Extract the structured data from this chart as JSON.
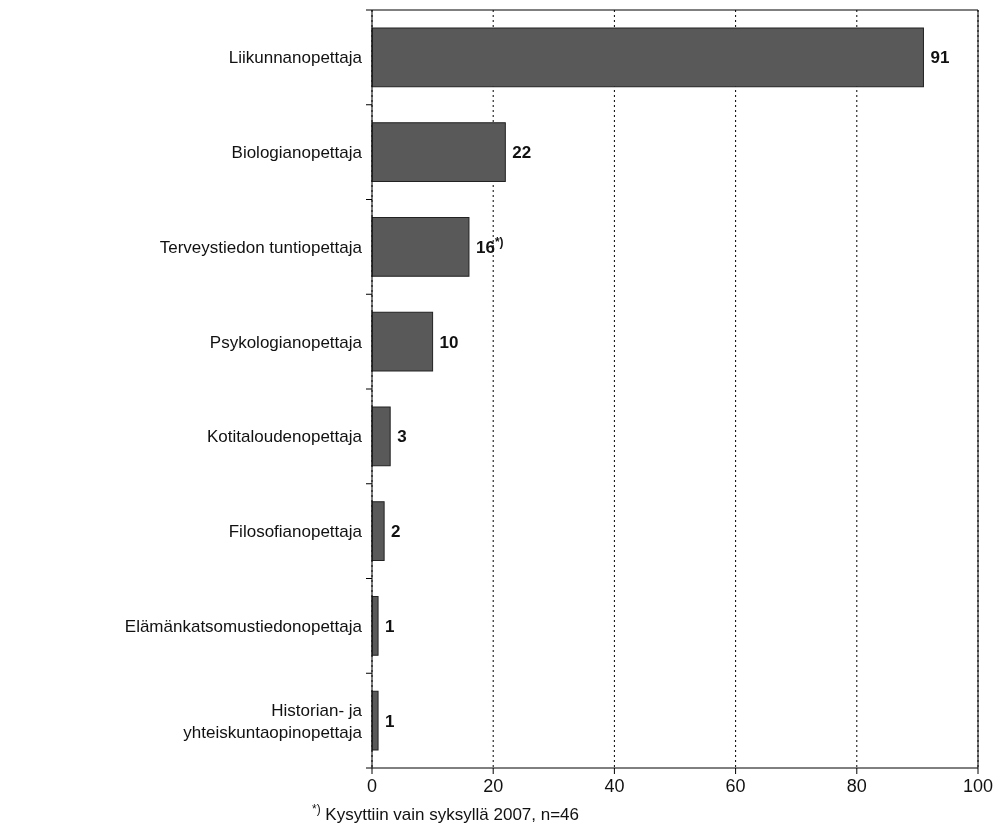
{
  "chart_data": {
    "type": "bar",
    "orientation": "horizontal",
    "categories": [
      "Liikunnanopettaja",
      "Biologianopettaja",
      "Terveystiedon tuntiopettaja",
      "Psykologianopettaja",
      "Kotitaloudenopettaja",
      "Filosofianopettaja",
      "Elämänkatsomustiedonopettaja",
      "Historian- ja yhteiskuntaopinopettaja"
    ],
    "values": [
      91,
      22,
      16,
      10,
      3,
      2,
      1,
      1
    ],
    "value_labels": [
      "91",
      "22",
      "16$^{*)}$",
      "10",
      "3",
      "2",
      "1",
      "1"
    ],
    "color": "#595959",
    "xlim": [
      0,
      100
    ],
    "xticks": [
      0,
      20,
      40,
      60,
      80,
      100
    ],
    "grid": "x",
    "annotations": [
      "$^{*)}$ Kysyttiin vain syksyllä 2007, n=46"
    ]
  }
}
